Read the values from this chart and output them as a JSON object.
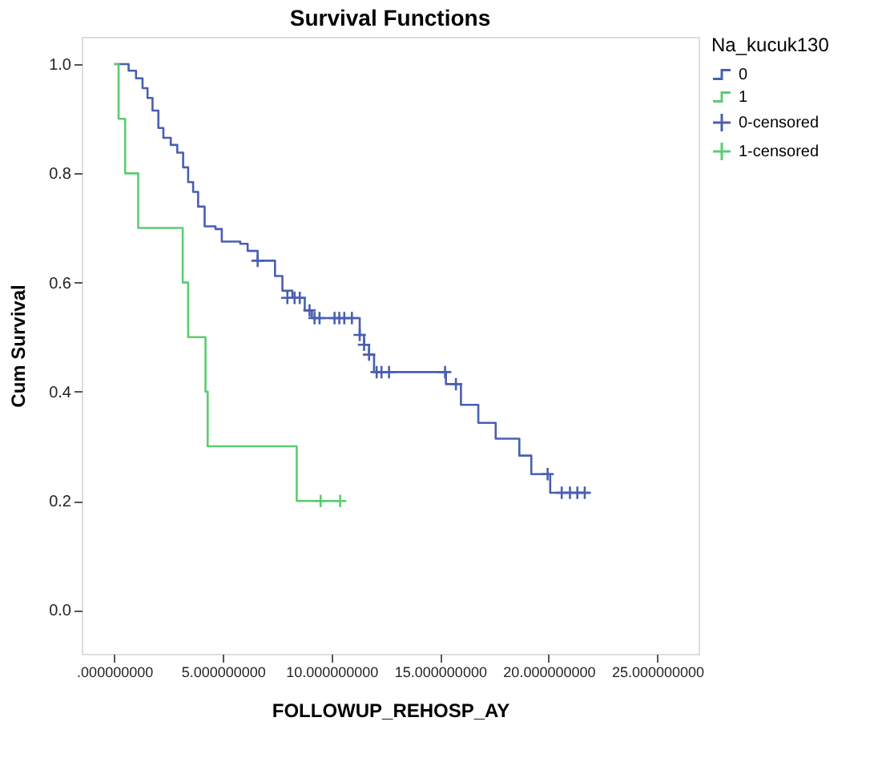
{
  "chart_data": {
    "type": "step",
    "title": "Survival Functions",
    "xlabel": "FOLLOWUP_REHOSP_AY",
    "ylabel": "Cum Survival",
    "legend_title": "Na_kucuk130",
    "legend": "right",
    "grid": false,
    "xlim": [
      -1.5,
      26.9
    ],
    "xticks": [
      {
        "value": 0,
        "label": ".000000000"
      },
      {
        "value": 5,
        "label": "5.000000000"
      },
      {
        "value": 10,
        "label": "10.000000000"
      },
      {
        "value": 15,
        "label": "15.000000000"
      },
      {
        "value": 20,
        "label": "20.000000000"
      },
      {
        "value": 25,
        "label": "25.000000000"
      }
    ],
    "ylim": [
      -0.08,
      1.05
    ],
    "yticks": [
      {
        "value": 0,
        "label": "0.0"
      },
      0.2,
      0.4,
      0.6,
      0.8,
      {
        "value": 1,
        "label": "1.0"
      }
    ],
    "series": [
      {
        "name": "0",
        "type": "step",
        "color": "#4a5fb0",
        "x": [
          0,
          0.43,
          0.66,
          1.0,
          1.3,
          1.53,
          1.76,
          2.03,
          2.26,
          2.6,
          2.9,
          3.17,
          3.4,
          3.63,
          3.86,
          4.16,
          4.66,
          4.95,
          5.8,
          6.14,
          6.6,
          7.4,
          7.74,
          8.2,
          8.77,
          9.1,
          11.05,
          11.3,
          11.5,
          11.73,
          11.96,
          15.27,
          15.96,
          16.76,
          17.56,
          18.65,
          19.2,
          20.07,
          21.9
        ],
        "values": [
          1.0,
          1.0,
          0.988,
          0.974,
          0.956,
          0.938,
          0.915,
          0.883,
          0.865,
          0.852,
          0.838,
          0.811,
          0.784,
          0.766,
          0.739,
          0.703,
          0.698,
          0.675,
          0.671,
          0.658,
          0.64,
          0.612,
          0.585,
          0.572,
          0.549,
          0.535,
          0.535,
          0.504,
          0.486,
          0.468,
          0.436,
          0.414,
          0.376,
          0.343,
          0.314,
          0.283,
          0.249,
          0.215,
          0.215
        ]
      },
      {
        "name": "1",
        "type": "step",
        "color": "#5ccc72",
        "x": [
          0,
          0.2,
          0.5,
          1.1,
          3.15,
          3.4,
          4.2,
          4.3,
          8.4,
          10.4
        ],
        "values": [
          1.0,
          0.9,
          0.8,
          0.7,
          0.6,
          0.5,
          0.4,
          0.3,
          0.2,
          0.2
        ]
      },
      {
        "name": "0-censored",
        "type": "scatter",
        "marker": "cross",
        "color": "#4a5fb0",
        "x": [
          6.6,
          7.97,
          8.3,
          8.54,
          8.99,
          9.22,
          9.45,
          10.14,
          10.36,
          10.59,
          10.94,
          11.3,
          11.5,
          11.73,
          12.08,
          12.3,
          12.65,
          15.23,
          15.73,
          19.95,
          20.6,
          20.98,
          21.32,
          21.66
        ],
        "values": [
          0.64,
          0.572,
          0.572,
          0.572,
          0.549,
          0.535,
          0.535,
          0.535,
          0.535,
          0.535,
          0.535,
          0.504,
          0.486,
          0.468,
          0.436,
          0.436,
          0.436,
          0.436,
          0.414,
          0.249,
          0.215,
          0.215,
          0.215,
          0.215
        ]
      },
      {
        "name": "1-censored",
        "type": "scatter",
        "marker": "cross",
        "color": "#5ccc72",
        "x": [
          9.5,
          10.4
        ],
        "values": [
          0.2,
          0.2
        ]
      }
    ]
  }
}
